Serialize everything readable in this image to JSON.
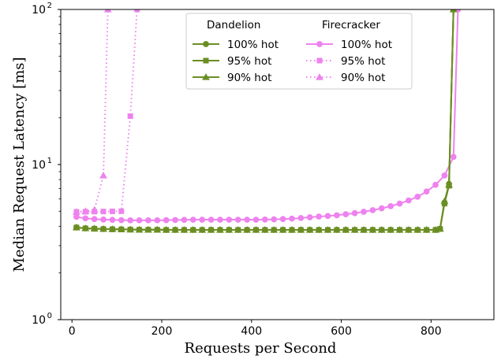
{
  "chart_data": {
    "type": "line",
    "xlabel": "Requests per Second",
    "ylabel": "Median Request Latency [ms]",
    "xlim": [
      -25,
      940
    ],
    "ylim": [
      1,
      100
    ],
    "yscale": "log",
    "xticks": [
      0,
      200,
      400,
      600,
      800
    ],
    "yticks": [
      {
        "value": 1,
        "base": "10",
        "exp": "0"
      },
      {
        "value": 10,
        "base": "10",
        "exp": "1"
      },
      {
        "value": 100,
        "base": "10",
        "exp": "2"
      }
    ],
    "grid": false,
    "legend": {
      "placement": "top-right",
      "groups": [
        {
          "title": "Dandelion",
          "entries": [
            "100% hot",
            "95% hot",
            "90% hot"
          ]
        },
        {
          "title": "Firecracker",
          "entries": [
            "100% hot",
            "95% hot",
            "90% hot"
          ]
        }
      ]
    },
    "colors": {
      "dandelion": "#6b8e23",
      "firecracker": "#ee82ee"
    },
    "series": [
      {
        "group": "Dandelion",
        "label": "100% hot",
        "marker": "circle",
        "style": "solid",
        "x": [
          10,
          30,
          50,
          70,
          90,
          110,
          130,
          150,
          170,
          190,
          210,
          230,
          250,
          270,
          290,
          310,
          330,
          350,
          370,
          390,
          410,
          430,
          450,
          470,
          490,
          510,
          530,
          550,
          570,
          590,
          610,
          630,
          650,
          670,
          690,
          710,
          730,
          750,
          770,
          790,
          810,
          820,
          830,
          840,
          850
        ],
        "y": [
          3.93,
          3.88,
          3.86,
          3.84,
          3.83,
          3.82,
          3.81,
          3.8,
          3.8,
          3.8,
          3.79,
          3.79,
          3.79,
          3.79,
          3.79,
          3.79,
          3.79,
          3.79,
          3.79,
          3.79,
          3.79,
          3.79,
          3.79,
          3.79,
          3.79,
          3.79,
          3.79,
          3.79,
          3.79,
          3.79,
          3.79,
          3.79,
          3.79,
          3.79,
          3.79,
          3.79,
          3.79,
          3.79,
          3.79,
          3.79,
          3.79,
          3.85,
          5.7,
          7.5,
          100
        ]
      },
      {
        "group": "Dandelion",
        "label": "95% hot",
        "marker": "square",
        "style": "solid",
        "x": [
          10,
          30,
          50,
          70,
          90,
          110,
          130,
          150,
          170,
          190,
          210,
          230,
          250,
          270,
          290,
          310,
          330,
          350,
          370,
          390,
          410,
          430,
          450,
          470,
          490,
          510,
          530,
          550,
          570,
          590,
          610,
          630,
          650,
          670,
          690,
          710,
          730,
          750,
          770,
          790,
          810,
          820,
          830,
          840,
          850
        ],
        "y": [
          3.93,
          3.88,
          3.86,
          3.84,
          3.83,
          3.82,
          3.81,
          3.8,
          3.8,
          3.8,
          3.79,
          3.79,
          3.79,
          3.79,
          3.79,
          3.79,
          3.79,
          3.79,
          3.79,
          3.79,
          3.79,
          3.79,
          3.79,
          3.79,
          3.79,
          3.79,
          3.79,
          3.79,
          3.79,
          3.79,
          3.79,
          3.79,
          3.79,
          3.79,
          3.79,
          3.79,
          3.79,
          3.79,
          3.79,
          3.79,
          3.79,
          3.85,
          5.6,
          7.3,
          100
        ]
      },
      {
        "group": "Dandelion",
        "label": "90% hot",
        "marker": "triangle",
        "style": "solid",
        "x": [
          10,
          30,
          50,
          70,
          90,
          110,
          130,
          150,
          170,
          190,
          210,
          230,
          250,
          270,
          290,
          310,
          330,
          350,
          370,
          390,
          410,
          430,
          450,
          470,
          490,
          510,
          530,
          550,
          570,
          590,
          610,
          630,
          650,
          670,
          690,
          710,
          730,
          750,
          770,
          790,
          810,
          820,
          830,
          840,
          850
        ],
        "y": [
          3.93,
          3.88,
          3.86,
          3.84,
          3.83,
          3.82,
          3.81,
          3.8,
          3.8,
          3.8,
          3.79,
          3.79,
          3.79,
          3.79,
          3.79,
          3.79,
          3.79,
          3.79,
          3.79,
          3.79,
          3.79,
          3.79,
          3.79,
          3.79,
          3.79,
          3.79,
          3.79,
          3.79,
          3.79,
          3.79,
          3.79,
          3.79,
          3.79,
          3.79,
          3.79,
          3.79,
          3.79,
          3.79,
          3.79,
          3.79,
          3.79,
          3.85,
          5.8,
          7.4,
          100
        ]
      },
      {
        "group": "Firecracker",
        "label": "100% hot",
        "marker": "circle",
        "style": "solid",
        "x": [
          10,
          30,
          50,
          70,
          90,
          110,
          130,
          150,
          170,
          190,
          210,
          230,
          250,
          270,
          290,
          310,
          330,
          350,
          370,
          390,
          410,
          430,
          450,
          470,
          490,
          510,
          530,
          550,
          570,
          590,
          610,
          630,
          650,
          670,
          690,
          710,
          730,
          750,
          770,
          790,
          810,
          830,
          850,
          860
        ],
        "y": [
          4.6,
          4.5,
          4.45,
          4.42,
          4.4,
          4.38,
          4.37,
          4.37,
          4.37,
          4.37,
          4.38,
          4.39,
          4.4,
          4.41,
          4.41,
          4.41,
          4.41,
          4.41,
          4.41,
          4.41,
          4.41,
          4.42,
          4.43,
          4.45,
          4.48,
          4.52,
          4.57,
          4.62,
          4.66,
          4.71,
          4.78,
          4.86,
          4.96,
          5.08,
          5.22,
          5.39,
          5.6,
          5.87,
          6.2,
          6.7,
          7.4,
          8.5,
          11.2,
          100
        ]
      },
      {
        "group": "Firecracker",
        "label": "95% hot",
        "marker": "square",
        "style": "dotted",
        "x": [
          10,
          30,
          50,
          70,
          90,
          110,
          130,
          145
        ],
        "y": [
          4.95,
          4.96,
          4.97,
          4.98,
          4.99,
          5.0,
          20.5,
          100
        ]
      },
      {
        "group": "Firecracker",
        "label": "90% hot",
        "marker": "triangle",
        "style": "dotted",
        "x": [
          10,
          30,
          50,
          70,
          80
        ],
        "y": [
          4.95,
          5.0,
          5.1,
          8.5,
          100
        ]
      }
    ]
  }
}
